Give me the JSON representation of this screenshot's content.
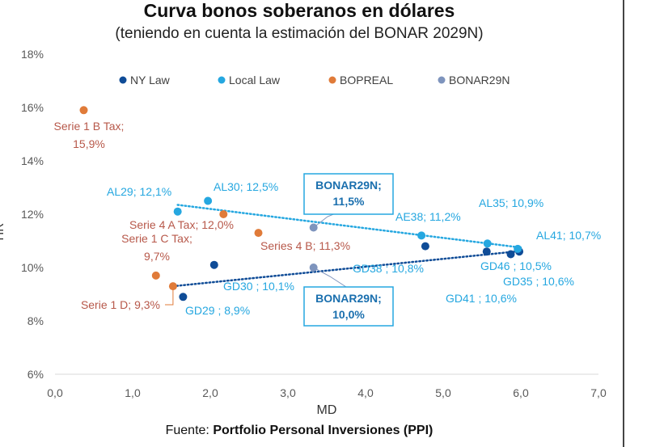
{
  "title": "Curva bonos soberanos en dólares",
  "subtitle": "(teniendo en cuenta la estimación del BONAR 2029N)",
  "source": {
    "prefix": "Fuente: ",
    "name": "Portfolio Personal Inversiones (PPI)"
  },
  "colors": {
    "ny_law": "#0f4c97",
    "local_law": "#25a7e0",
    "bopreal": "#e07b39",
    "bonar29n": "#7e94bd",
    "label_orange": "#b7584a"
  },
  "chart_data": {
    "type": "scatter",
    "title": "Curva bonos soberanos en dólares",
    "subtitle": "(teniendo en cuenta la estimación del BONAR 2029N)",
    "xlabel": "MD",
    "ylabel": "TIR",
    "xlim": [
      0,
      7
    ],
    "ylim": [
      6,
      18
    ],
    "xticks": [
      "0,0",
      "1,0",
      "2,0",
      "3,0",
      "4,0",
      "5,0",
      "6,0",
      "7,0"
    ],
    "yticks": [
      "6%",
      "8%",
      "10%",
      "12%",
      "14%",
      "16%",
      "18%"
    ],
    "legend": [
      "NY Law",
      "Local Law",
      "BOPREAL",
      "BONAR29N"
    ],
    "series": [
      {
        "name": "NY Law",
        "color": "#0f4c97",
        "points": [
          {
            "x": 1.65,
            "y": 8.9,
            "label": "GD29 ; 8,9%"
          },
          {
            "x": 2.05,
            "y": 10.1,
            "label": "GD30 ; 10,1%"
          },
          {
            "x": 4.77,
            "y": 10.8,
            "label": "GD38 ; 10,8%"
          },
          {
            "x": 5.56,
            "y": 10.6,
            "label": "GD41 ; 10,6%"
          },
          {
            "x": 5.87,
            "y": 10.5,
            "label": "GD46 ; 10,5%"
          },
          {
            "x": 5.98,
            "y": 10.6,
            "label": "GD35 ; 10,6%"
          }
        ]
      },
      {
        "name": "Local Law",
        "color": "#25a7e0",
        "points": [
          {
            "x": 1.58,
            "y": 12.1,
            "label": "AL29; 12,1%"
          },
          {
            "x": 1.97,
            "y": 12.5,
            "label": "AL30; 12,5%"
          },
          {
            "x": 4.72,
            "y": 11.2,
            "label": "AE38; 11,2%"
          },
          {
            "x": 5.57,
            "y": 10.9,
            "label": "AL35; 10,9%"
          },
          {
            "x": 5.96,
            "y": 10.7,
            "label": "AL41; 10,7%"
          }
        ]
      },
      {
        "name": "BOPREAL",
        "color": "#e07b39",
        "points": [
          {
            "x": 0.37,
            "y": 15.9,
            "label": "Serie 1 B Tax; 15,9%"
          },
          {
            "x": 1.3,
            "y": 9.7,
            "label": "Serie 1 C Tax; 9,7%"
          },
          {
            "x": 1.52,
            "y": 9.3,
            "label": "Serie 1 D; 9,3%"
          },
          {
            "x": 2.17,
            "y": 12.0,
            "label": "Serie 4 A Tax; 12,0%"
          },
          {
            "x": 2.62,
            "y": 11.3,
            "label": "Series 4 B; 11,3%"
          }
        ]
      },
      {
        "name": "BONAR29N",
        "color": "#7e94bd",
        "points": [
          {
            "x": 3.33,
            "y": 11.5,
            "label": "BONAR29N; 11,5%"
          },
          {
            "x": 3.33,
            "y": 10.0,
            "label": "BONAR29N; 10,0%"
          }
        ]
      }
    ],
    "trendlines": [
      {
        "name": "Local Law trend",
        "color": "#25a7e0",
        "from": [
          1.58,
          12.35
        ],
        "to": [
          6.0,
          10.75
        ]
      },
      {
        "name": "NY Law trend",
        "color": "#0f4c97",
        "from": [
          1.52,
          9.3
        ],
        "to": [
          6.0,
          10.62
        ]
      }
    ],
    "annotations": [
      {
        "text": [
          "Serie 1 B Tax;",
          "15,9%"
        ],
        "color": "#b7584a"
      },
      {
        "text": [
          "AL29; 12,1%"
        ],
        "color": "#25a7e0"
      },
      {
        "text": [
          "AL30; 12,5%"
        ],
        "color": "#25a7e0"
      },
      {
        "text": [
          "Serie 4 A Tax; 12,0%"
        ],
        "color": "#b7584a"
      },
      {
        "text": [
          "Serie 1 C Tax;",
          "9,7%"
        ],
        "color": "#b7584a"
      },
      {
        "text": [
          "Series 4 B; 11,3%"
        ],
        "color": "#b7584a"
      },
      {
        "text": [
          "Serie 1 D; 9,3%"
        ],
        "color": "#b7584a"
      },
      {
        "text": [
          "GD30 ; 10,1%"
        ],
        "color": "#25a7e0"
      },
      {
        "text": [
          "GD29 ; 8,9%"
        ],
        "color": "#25a7e0"
      },
      {
        "text": [
          "AE38; 11,2%"
        ],
        "color": "#25a7e0"
      },
      {
        "text": [
          "GD38 ; 10,8%"
        ],
        "color": "#25a7e0"
      },
      {
        "text": [
          "AL35; 10,9%"
        ],
        "color": "#25a7e0"
      },
      {
        "text": [
          "AL41; 10,7%"
        ],
        "color": "#25a7e0"
      },
      {
        "text": [
          "GD46 ; 10,5%"
        ],
        "color": "#25a7e0"
      },
      {
        "text": [
          "GD35 ; 10,6%"
        ],
        "color": "#25a7e0"
      },
      {
        "text": [
          "GD41 ; 10,6%"
        ],
        "color": "#25a7e0"
      }
    ],
    "callouts": [
      {
        "text": [
          "BONAR29N;",
          "11,5%"
        ]
      },
      {
        "text": [
          "BONAR29N;",
          "10,0%"
        ]
      }
    ]
  }
}
